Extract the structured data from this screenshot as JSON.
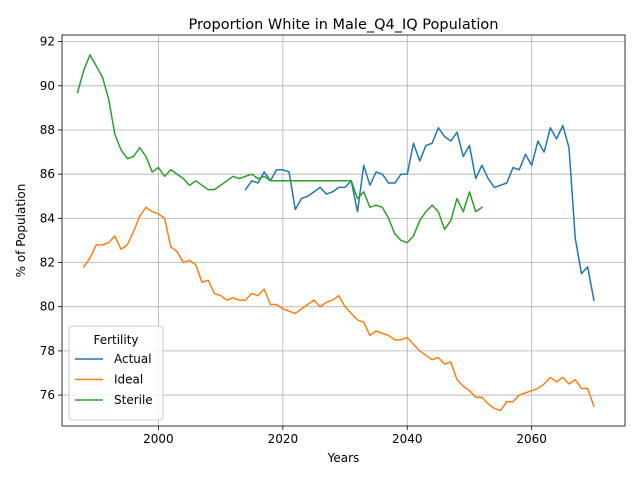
{
  "chart_data": {
    "type": "line",
    "title": "Proportion White in Male_Q4_IQ Population",
    "xlabel": "Years",
    "ylabel": "% of Population",
    "xlim": [
      1984.5,
      2075
    ],
    "ylim": [
      74.6,
      92.3
    ],
    "xticks": [
      2000,
      2020,
      2040,
      2060
    ],
    "yticks": [
      76,
      78,
      80,
      82,
      84,
      86,
      88,
      90,
      92
    ],
    "grid": true,
    "legend": {
      "title": "Fertility",
      "placement": "lower-left"
    },
    "series": [
      {
        "name": "Actual",
        "color": "#1f77b4",
        "x": [
          2014,
          2015,
          2016,
          2017,
          2018,
          2019,
          2020,
          2021,
          2022,
          2023,
          2024,
          2025,
          2026,
          2027,
          2028,
          2029,
          2030,
          2031,
          2032,
          2033,
          2034,
          2035,
          2036,
          2037,
          2038,
          2039,
          2040,
          2041,
          2042,
          2043,
          2044,
          2045,
          2046,
          2047,
          2048,
          2049,
          2050,
          2051,
          2052,
          2053,
          2054,
          2055,
          2056,
          2057,
          2058,
          2059,
          2060,
          2061,
          2062,
          2063,
          2064,
          2065,
          2066,
          2067,
          2068,
          2069,
          2070
        ],
        "y": [
          85.3,
          85.7,
          85.6,
          86.1,
          85.7,
          86.2,
          86.2,
          86.1,
          84.4,
          84.9,
          85.0,
          85.2,
          85.4,
          85.1,
          85.2,
          85.4,
          85.4,
          85.7,
          84.3,
          86.4,
          85.5,
          86.1,
          86.0,
          85.6,
          85.6,
          86.0,
          86.0,
          87.4,
          86.6,
          87.3,
          87.4,
          88.1,
          87.7,
          87.5,
          87.9,
          86.8,
          87.3,
          85.8,
          86.4,
          85.8,
          85.4,
          85.5,
          85.6,
          86.3,
          86.2,
          86.9,
          86.4,
          87.5,
          87.0,
          88.1,
          87.6,
          88.2,
          87.2,
          83.1,
          81.5,
          81.8,
          80.3
        ]
      },
      {
        "name": "Ideal",
        "color": "#ff7f0e",
        "x": [
          1988,
          1989,
          1990,
          1991,
          1992,
          1993,
          1994,
          1995,
          1996,
          1997,
          1998,
          1999,
          2000,
          2001,
          2002,
          2003,
          2004,
          2005,
          2006,
          2007,
          2008,
          2009,
          2010,
          2011,
          2012,
          2013,
          2014,
          2015,
          2016,
          2017,
          2018,
          2019,
          2020,
          2021,
          2022,
          2023,
          2024,
          2025,
          2026,
          2027,
          2028,
          2029,
          2030,
          2031,
          2032,
          2033,
          2034,
          2035,
          2036,
          2037,
          2038,
          2039,
          2040,
          2041,
          2042,
          2043,
          2044,
          2045,
          2046,
          2047,
          2048,
          2049,
          2050,
          2051,
          2052,
          2053,
          2054,
          2055,
          2056,
          2057,
          2058,
          2059,
          2060,
          2061,
          2062,
          2063,
          2064,
          2065,
          2066,
          2067,
          2068,
          2069,
          2070
        ],
        "y": [
          81.8,
          82.2,
          82.8,
          82.8,
          82.9,
          83.2,
          82.6,
          82.8,
          83.4,
          84.1,
          84.5,
          84.3,
          84.2,
          84.0,
          82.7,
          82.5,
          82.0,
          82.1,
          81.9,
          81.1,
          81.2,
          80.6,
          80.5,
          80.3,
          80.4,
          80.3,
          80.3,
          80.6,
          80.5,
          80.8,
          80.1,
          80.1,
          79.9,
          79.8,
          79.7,
          79.9,
          80.1,
          80.3,
          80.0,
          80.2,
          80.3,
          80.5,
          80.0,
          79.7,
          79.4,
          79.3,
          78.7,
          78.9,
          78.8,
          78.7,
          78.5,
          78.5,
          78.6,
          78.3,
          78.0,
          77.8,
          77.6,
          77.7,
          77.4,
          77.5,
          76.7,
          76.4,
          76.2,
          75.9,
          75.9,
          75.6,
          75.4,
          75.3,
          75.7,
          75.7,
          76.0,
          76.1,
          76.2,
          76.3,
          76.5,
          76.8,
          76.6,
          76.8,
          76.5,
          76.7,
          76.3,
          76.3,
          75.5
        ]
      },
      {
        "name": "Sterile",
        "color": "#2ca02c",
        "x": [
          1987,
          1988,
          1989,
          1990,
          1991,
          1992,
          1993,
          1994,
          1995,
          1996,
          1997,
          1998,
          1999,
          2000,
          2001,
          2002,
          2003,
          2004,
          2005,
          2006,
          2007,
          2008,
          2009,
          2010,
          2011,
          2012,
          2013,
          2014,
          2015,
          2016,
          2017,
          2018,
          2019,
          2020,
          2021,
          2022,
          2023,
          2024,
          2025,
          2026,
          2027,
          2028,
          2029,
          2030,
          2031,
          2032,
          2033,
          2034,
          2035,
          2036,
          2037,
          2038,
          2039,
          2040,
          2041,
          2042,
          2043,
          2044,
          2045,
          2046,
          2047,
          2048,
          2049,
          2050,
          2051,
          2052
        ],
        "y": [
          89.7,
          90.7,
          91.4,
          90.9,
          90.4,
          89.4,
          87.8,
          87.1,
          86.7,
          86.8,
          87.2,
          86.8,
          86.1,
          86.3,
          85.9,
          86.2,
          86.0,
          85.8,
          85.5,
          85.7,
          85.5,
          85.3,
          85.3,
          85.5,
          85.7,
          85.9,
          85.8,
          85.9,
          86.0,
          85.8,
          85.9,
          85.7,
          85.7,
          85.7,
          85.7,
          85.7,
          85.7,
          85.7,
          85.7,
          85.7,
          85.7,
          85.7,
          85.7,
          85.7,
          85.7,
          84.9,
          85.2,
          84.5,
          84.6,
          84.5,
          84.0,
          83.3,
          83.0,
          82.9,
          83.2,
          83.9,
          84.3,
          84.6,
          84.3,
          83.5,
          83.9,
          84.9,
          84.3,
          85.2,
          84.3,
          84.5
        ]
      }
    ]
  }
}
